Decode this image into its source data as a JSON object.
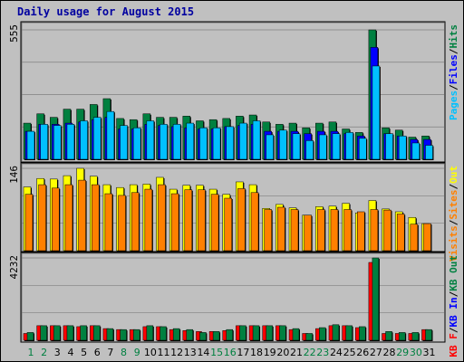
{
  "title": "Daily usage for August 2015",
  "colors": {
    "hits": "#008040",
    "files": "#0000ff",
    "pages": "#00c0ff",
    "visits": "#ffff00",
    "sites": "#ff8000",
    "kb_in": "#0000ff",
    "kb_out": "#008040",
    "kb_f": "#ff0000",
    "weekend_label": "#008040",
    "weekday_label": "#000000"
  },
  "chart_data": [
    {
      "type": "bar",
      "panel": "top",
      "ymax_label": "555",
      "ylim": [
        0,
        555
      ],
      "legend": [
        "Pages",
        "Files",
        "Hits"
      ],
      "categories": [
        "1",
        "2",
        "3",
        "4",
        "5",
        "6",
        "7",
        "8",
        "9",
        "10",
        "11",
        "12",
        "13",
        "14",
        "15",
        "16",
        "17",
        "18",
        "19",
        "20",
        "21",
        "22",
        "23",
        "24",
        "25",
        "26",
        "27",
        "28",
        "29",
        "30",
        "31"
      ],
      "weekend_days": [
        1,
        2,
        8,
        9,
        15,
        16,
        22,
        23,
        29,
        30
      ],
      "series": [
        {
          "name": "Hits",
          "values": [
            155,
            195,
            180,
            215,
            215,
            235,
            260,
            175,
            170,
            195,
            180,
            180,
            185,
            165,
            170,
            175,
            185,
            190,
            160,
            150,
            155,
            135,
            155,
            160,
            130,
            115,
            555,
            135,
            125,
            95,
            100
          ]
        },
        {
          "name": "Files",
          "values": [
            120,
            150,
            150,
            155,
            160,
            170,
            180,
            130,
            130,
            150,
            145,
            140,
            135,
            130,
            130,
            140,
            145,
            150,
            120,
            120,
            120,
            110,
            120,
            120,
            110,
            100,
            480,
            110,
            100,
            85,
            85
          ]
        },
        {
          "name": "Pages",
          "values": [
            120,
            150,
            145,
            150,
            165,
            180,
            205,
            145,
            135,
            165,
            150,
            150,
            155,
            135,
            135,
            140,
            155,
            165,
            105,
            125,
            110,
            80,
            105,
            110,
            115,
            90,
            400,
            110,
            100,
            70,
            60
          ]
        }
      ]
    },
    {
      "type": "bar",
      "panel": "middle",
      "ymax_label": "146",
      "ylim": [
        0,
        146
      ],
      "legend": [
        "Visits",
        "Sites",
        "Out"
      ],
      "categories": [
        "1",
        "2",
        "3",
        "4",
        "5",
        "6",
        "7",
        "8",
        "9",
        "10",
        "11",
        "12",
        "13",
        "14",
        "15",
        "16",
        "17",
        "18",
        "19",
        "20",
        "21",
        "22",
        "23",
        "24",
        "25",
        "26",
        "27",
        "28",
        "29",
        "30",
        "31"
      ],
      "series": [
        {
          "name": "Visits",
          "values": [
            113,
            128,
            127,
            133,
            146,
            132,
            117,
            112,
            117,
            118,
            130,
            109,
            116,
            116,
            109,
            100,
            122,
            117,
            75,
            82,
            76,
            63,
            78,
            79,
            84,
            67,
            89,
            74,
            69,
            59,
            48
          ]
        },
        {
          "name": "Sites",
          "values": [
            100,
            117,
            111,
            117,
            125,
            117,
            101,
            98,
            103,
            109,
            117,
            101,
            108,
            108,
            100,
            93,
            110,
            103,
            73,
            77,
            73,
            63,
            73,
            73,
            73,
            69,
            73,
            72,
            65,
            47,
            48
          ]
        }
      ]
    },
    {
      "type": "bar",
      "panel": "bottom",
      "ymax_label": "4232",
      "ylim": [
        0,
        4232
      ],
      "legend": [
        "KB F",
        "KB In",
        "KB Out"
      ],
      "categories": [
        "1",
        "2",
        "3",
        "4",
        "5",
        "6",
        "7",
        "8",
        "9",
        "10",
        "11",
        "12",
        "13",
        "14",
        "15",
        "16",
        "17",
        "18",
        "19",
        "20",
        "21",
        "22",
        "23",
        "24",
        "25",
        "26",
        "27",
        "28",
        "29",
        "30",
        "31"
      ],
      "series": [
        {
          "name": "KB F",
          "values": [
            350,
            750,
            750,
            750,
            700,
            750,
            600,
            550,
            550,
            700,
            700,
            550,
            500,
            450,
            450,
            500,
            750,
            750,
            750,
            750,
            550,
            350,
            600,
            750,
            750,
            650,
            4000,
            350,
            350,
            350,
            550
          ]
        },
        {
          "name": "KB Out",
          "values": [
            400,
            750,
            750,
            750,
            750,
            750,
            600,
            550,
            550,
            750,
            700,
            600,
            550,
            400,
            450,
            550,
            750,
            750,
            750,
            750,
            600,
            350,
            650,
            800,
            750,
            700,
            4232,
            450,
            400,
            400,
            550
          ]
        }
      ]
    }
  ]
}
